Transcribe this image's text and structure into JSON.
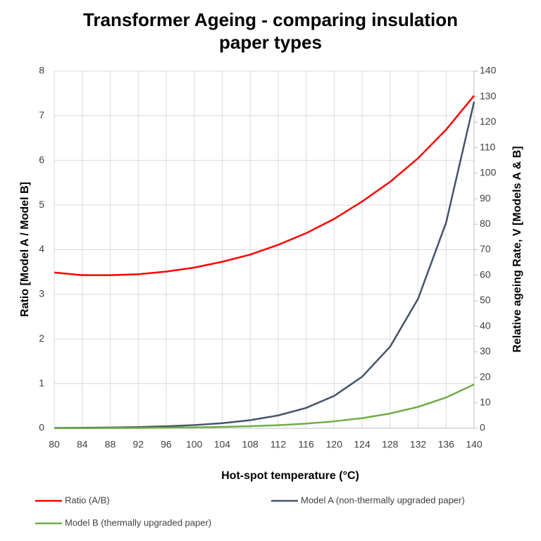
{
  "chart_data": {
    "type": "line",
    "title": "Transformer Ageing - comparing insulation paper types",
    "x_label": "Hot-spot temperature (°C)",
    "y_label": "Ratio [Model A / Model B]",
    "y2_label": "Relative ageing Rate, V [Models A & B]",
    "x": [
      80,
      84,
      88,
      92,
      96,
      100,
      104,
      108,
      112,
      116,
      120,
      124,
      128,
      132,
      136,
      140
    ],
    "series": [
      {
        "name": "Ratio (A/B)",
        "color": "#ff0000",
        "axis": "y",
        "values": [
          3.49,
          3.43,
          3.43,
          3.45,
          3.51,
          3.6,
          3.73,
          3.89,
          4.11,
          4.37,
          4.69,
          5.08,
          5.52,
          6.05,
          6.69,
          7.45
        ]
      },
      {
        "name": "Model A (non-thermally upgraded paper)",
        "color": "#44546a",
        "axis": "y2",
        "values": [
          0.125,
          0.198,
          0.315,
          0.5,
          0.794,
          1.26,
          2,
          3.17,
          5.04,
          8,
          12.7,
          20.2,
          32,
          50.8,
          80.6,
          128
        ]
      },
      {
        "name": "Model B (thermally upgraded paper)",
        "color": "#70ad47",
        "axis": "y2",
        "values": [
          0.0358,
          0.0577,
          0.0919,
          0.145,
          0.226,
          0.35,
          0.536,
          0.814,
          1.225,
          1.829,
          2.708,
          3.979,
          5.8,
          8.39,
          12.05,
          17.18
        ]
      }
    ],
    "xlim": [
      80,
      140
    ],
    "xticks": [
      80,
      84,
      88,
      92,
      96,
      100,
      104,
      108,
      112,
      116,
      120,
      124,
      128,
      132,
      136,
      140
    ],
    "ylim": [
      0,
      8
    ],
    "yticks": [
      0,
      1,
      2,
      3,
      4,
      5,
      6,
      7,
      8
    ],
    "y2lim": [
      0,
      140
    ],
    "y2ticks": [
      0,
      10,
      20,
      30,
      40,
      50,
      60,
      70,
      80,
      90,
      100,
      110,
      120,
      130,
      140
    ],
    "grid": true,
    "legend": "bottom"
  }
}
